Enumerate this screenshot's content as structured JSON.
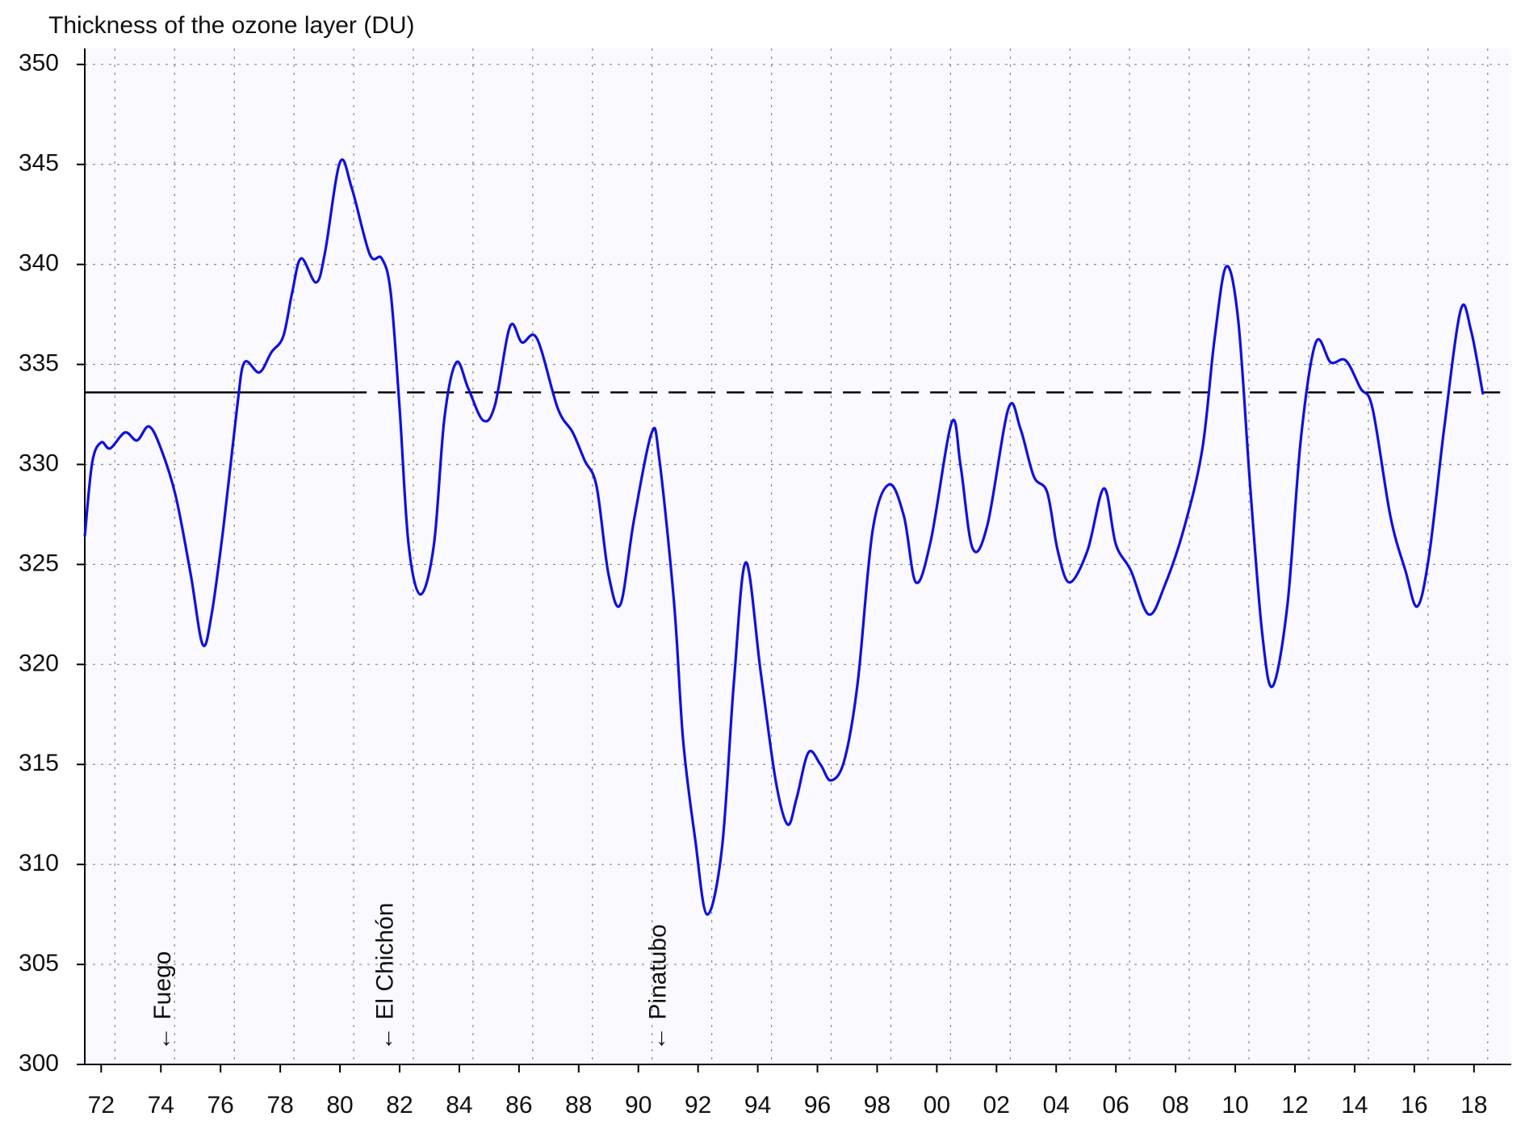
{
  "chart_data": {
    "type": "line",
    "title": "Thickness of the ozone layer (DU)",
    "xlim": [
      1971.45,
      2019.25
    ],
    "ylim": [
      300,
      350.8
    ],
    "xticks": [
      {
        "value": 1972,
        "label": "72"
      },
      {
        "value": 1974,
        "label": "74"
      },
      {
        "value": 1976,
        "label": "76"
      },
      {
        "value": 1978,
        "label": "78"
      },
      {
        "value": 1980,
        "label": "80"
      },
      {
        "value": 1982,
        "label": "82"
      },
      {
        "value": 1984,
        "label": "84"
      },
      {
        "value": 1986,
        "label": "86"
      },
      {
        "value": 1988,
        "label": "88"
      },
      {
        "value": 1990,
        "label": "90"
      },
      {
        "value": 1992,
        "label": "92"
      },
      {
        "value": 1994,
        "label": "94"
      },
      {
        "value": 1996,
        "label": "96"
      },
      {
        "value": 1998,
        "label": "98"
      },
      {
        "value": 2000,
        "label": "00"
      },
      {
        "value": 2002,
        "label": "02"
      },
      {
        "value": 2004,
        "label": "04"
      },
      {
        "value": 2006,
        "label": "06"
      },
      {
        "value": 2008,
        "label": "08"
      },
      {
        "value": 2010,
        "label": "10"
      },
      {
        "value": 2012,
        "label": "12"
      },
      {
        "value": 2014,
        "label": "14"
      },
      {
        "value": 2016,
        "label": "16"
      },
      {
        "value": 2018,
        "label": "18"
      }
    ],
    "yticks": [
      300,
      305,
      310,
      315,
      320,
      325,
      330,
      335,
      340,
      345,
      350
    ],
    "grid": true,
    "reference_lines": [
      {
        "value": 333.6,
        "from": 1971.45,
        "to": 1980.3,
        "style": "solid"
      },
      {
        "value": 333.6,
        "from": 1980.3,
        "to": 2019.25,
        "style": "dashed"
      }
    ],
    "annotations": [
      {
        "text": "← Fuego",
        "x": 1974.1
      },
      {
        "text": "← El Chichón",
        "x": 1981.55
      },
      {
        "text": "← Pinatubo",
        "x": 1990.7
      }
    ],
    "x": [
      1971.45,
      1971.7,
      1972.0,
      1972.3,
      1972.8,
      1973.2,
      1973.6,
      1974.0,
      1974.5,
      1975.0,
      1975.4,
      1975.7,
      1976.1,
      1976.55,
      1976.8,
      1977.3,
      1977.7,
      1978.1,
      1978.4,
      1978.7,
      1979.2,
      1979.5,
      1980.0,
      1980.4,
      1981.0,
      1981.4,
      1981.7,
      1982.0,
      1982.3,
      1982.7,
      1983.15,
      1983.5,
      1983.9,
      1984.3,
      1984.8,
      1985.2,
      1985.7,
      1986.1,
      1986.6,
      1987.3,
      1987.8,
      1988.2,
      1988.6,
      1989.0,
      1989.4,
      1989.85,
      1990.45,
      1990.7,
      1991.2,
      1991.5,
      1991.9,
      1992.3,
      1992.8,
      1993.2,
      1993.6,
      1994.1,
      1994.6,
      1995.0,
      1995.3,
      1995.7,
      1996.1,
      1996.45,
      1996.9,
      1997.35,
      1997.85,
      1998.4,
      1998.9,
      1999.3,
      1999.8,
      2000.5,
      2000.8,
      2001.2,
      2001.7,
      2002.4,
      2002.8,
      2003.25,
      2003.7,
      2004.05,
      2004.45,
      2005.05,
      2005.6,
      2006.0,
      2006.5,
      2007.1,
      2007.65,
      2008.3,
      2008.9,
      2009.3,
      2009.7,
      2010.1,
      2010.5,
      2010.9,
      2011.25,
      2011.75,
      2012.2,
      2012.7,
      2013.2,
      2013.7,
      2014.2,
      2014.6,
      2015.2,
      2015.7,
      2016.1,
      2016.5,
      2017.0,
      2017.55,
      2017.9,
      2018.3
    ],
    "series": [
      {
        "color": "#1010e0",
        "values": [
          326.4,
          330.1,
          331.1,
          330.8,
          331.6,
          331.2,
          331.9,
          330.8,
          328.4,
          324.5,
          321.0,
          322.5,
          326.9,
          332.8,
          335.1,
          334.6,
          335.6,
          336.4,
          338.6,
          340.3,
          339.1,
          340.6,
          345.1,
          343.8,
          340.5,
          340.3,
          338.6,
          332.8,
          326.0,
          323.5,
          326.0,
          332.3,
          335.1,
          333.8,
          332.2,
          333.0,
          336.9,
          336.1,
          336.3,
          332.8,
          331.6,
          330.2,
          328.9,
          324.5,
          323.0,
          327.2,
          331.6,
          330.3,
          323.0,
          316.2,
          311.3,
          307.5,
          310.8,
          319.1,
          325.1,
          319.6,
          314.2,
          312.0,
          313.3,
          315.6,
          315.0,
          314.2,
          315.2,
          319.1,
          326.7,
          329.0,
          327.4,
          324.1,
          326.2,
          332.1,
          329.9,
          325.8,
          327.0,
          332.8,
          331.8,
          329.4,
          328.6,
          325.7,
          324.1,
          325.7,
          328.8,
          326.0,
          324.7,
          322.5,
          324.0,
          326.9,
          330.8,
          336.2,
          339.9,
          337.2,
          328.9,
          321.6,
          318.9,
          323.0,
          331.3,
          336.1,
          335.1,
          335.2,
          333.8,
          332.8,
          327.4,
          324.7,
          322.9,
          325.5,
          331.8,
          337.7,
          336.7,
          333.5
        ]
      }
    ]
  }
}
